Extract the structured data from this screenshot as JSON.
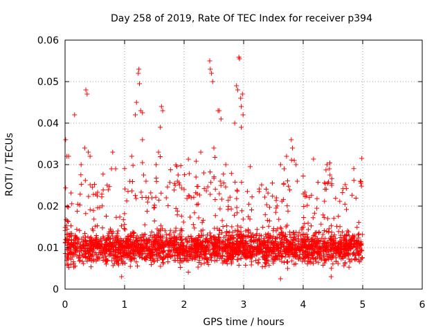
{
  "chart_data": {
    "type": "scatter",
    "title": "Day 258 of 2019, Rate Of TEC Index for receiver p394",
    "xlabel": "GPS time / hours",
    "ylabel": "ROTI / TECUs",
    "xlim": [
      0,
      6
    ],
    "ylim": [
      0,
      0.06
    ],
    "x_ticks": [
      "0",
      "1",
      "2",
      "3",
      "4",
      "5",
      "6"
    ],
    "y_ticks": [
      "0",
      "0.01",
      "0.02",
      "0.03",
      "0.04",
      "0.05",
      "0.06"
    ],
    "grid": true,
    "marker": "plus",
    "color": "#ff0000",
    "x_data_end": 5.0,
    "baseline_band": [
      0.004,
      0.016
    ],
    "series": [
      {
        "name": "ROTI",
        "notable_points": [
          {
            "x": 0.01,
            "y": 0.036
          },
          {
            "x": 0.03,
            "y": 0.032
          },
          {
            "x": 0.06,
            "y": 0.032
          },
          {
            "x": 0.16,
            "y": 0.042
          },
          {
            "x": 0.35,
            "y": 0.048
          },
          {
            "x": 0.37,
            "y": 0.047
          },
          {
            "x": 0.33,
            "y": 0.034
          },
          {
            "x": 0.39,
            "y": 0.033
          },
          {
            "x": 0.42,
            "y": 0.032
          },
          {
            "x": 0.27,
            "y": 0.03
          },
          {
            "x": 0.78,
            "y": 0.029
          },
          {
            "x": 0.85,
            "y": 0.029
          },
          {
            "x": 0.8,
            "y": 0.033
          },
          {
            "x": 1.12,
            "y": 0.032
          },
          {
            "x": 1.18,
            "y": 0.042
          },
          {
            "x": 1.2,
            "y": 0.045
          },
          {
            "x": 1.23,
            "y": 0.052
          },
          {
            "x": 1.24,
            "y": 0.053
          },
          {
            "x": 1.25,
            "y": 0.0495
          },
          {
            "x": 1.27,
            "y": 0.043
          },
          {
            "x": 1.3,
            "y": 0.0425
          },
          {
            "x": 1.3,
            "y": 0.036
          },
          {
            "x": 1.32,
            "y": 0.0275
          },
          {
            "x": 1.36,
            "y": 0.026
          },
          {
            "x": 1.4,
            "y": 0.022
          },
          {
            "x": 1.46,
            "y": 0.022
          },
          {
            "x": 1.53,
            "y": 0.03
          },
          {
            "x": 1.57,
            "y": 0.033
          },
          {
            "x": 1.6,
            "y": 0.039
          },
          {
            "x": 1.62,
            "y": 0.044
          },
          {
            "x": 1.64,
            "y": 0.043
          },
          {
            "x": 1.7,
            "y": 0.022
          },
          {
            "x": 1.85,
            "y": 0.025
          },
          {
            "x": 2.0,
            "y": 0.024
          },
          {
            "x": 2.2,
            "y": 0.027
          },
          {
            "x": 2.28,
            "y": 0.033
          },
          {
            "x": 2.33,
            "y": 0.028
          },
          {
            "x": 2.43,
            "y": 0.055
          },
          {
            "x": 2.44,
            "y": 0.053
          },
          {
            "x": 2.46,
            "y": 0.052
          },
          {
            "x": 2.48,
            "y": 0.05
          },
          {
            "x": 2.5,
            "y": 0.034
          },
          {
            "x": 2.57,
            "y": 0.043
          },
          {
            "x": 2.59,
            "y": 0.043
          },
          {
            "x": 2.62,
            "y": 0.041
          },
          {
            "x": 2.7,
            "y": 0.03
          },
          {
            "x": 2.85,
            "y": 0.04
          },
          {
            "x": 2.88,
            "y": 0.049
          },
          {
            "x": 2.9,
            "y": 0.048
          },
          {
            "x": 2.92,
            "y": 0.0559
          },
          {
            "x": 2.93,
            "y": 0.0555
          },
          {
            "x": 2.95,
            "y": 0.046
          },
          {
            "x": 2.96,
            "y": 0.044
          },
          {
            "x": 2.98,
            "y": 0.047
          },
          {
            "x": 2.99,
            "y": 0.042
          },
          {
            "x": 2.96,
            "y": 0.039
          },
          {
            "x": 3.55,
            "y": 0.022
          },
          {
            "x": 3.62,
            "y": 0.03
          },
          {
            "x": 3.68,
            "y": 0.029
          },
          {
            "x": 3.72,
            "y": 0.032
          },
          {
            "x": 3.8,
            "y": 0.036
          },
          {
            "x": 3.82,
            "y": 0.034
          },
          {
            "x": 3.85,
            "y": 0.031
          },
          {
            "x": 3.88,
            "y": 0.03
          },
          {
            "x": 3.9,
            "y": 0.026
          },
          {
            "x": 4.4,
            "y": 0.03
          },
          {
            "x": 4.44,
            "y": 0.029
          },
          {
            "x": 4.45,
            "y": 0.0275
          },
          {
            "x": 4.48,
            "y": 0.025
          },
          {
            "x": 4.96,
            "y": 0.026
          },
          {
            "x": 4.97,
            "y": 0.0255
          },
          {
            "x": 3.62,
            "y": 0.0025
          },
          {
            "x": 4.47,
            "y": 0.003
          },
          {
            "x": 0.95,
            "y": 0.003
          }
        ]
      }
    ]
  }
}
